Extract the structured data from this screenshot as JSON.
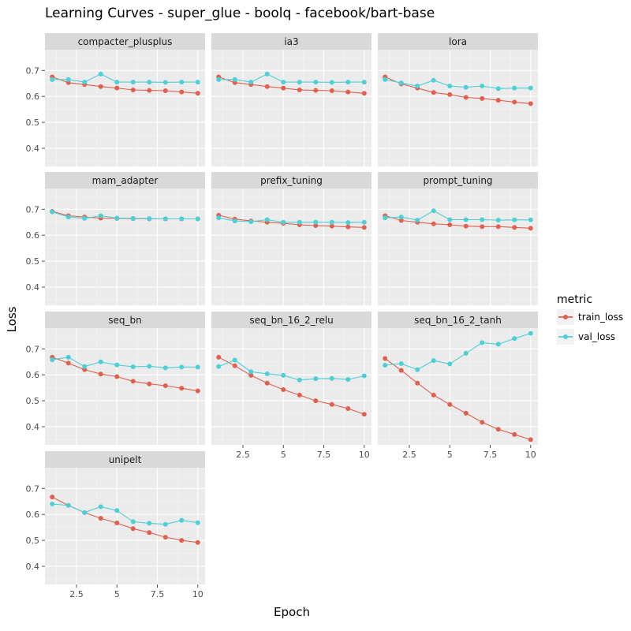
{
  "chart_data": {
    "type": "line",
    "title": "Learning Curves - super_glue - boolq - facebook/bart-base",
    "xlabel": "Epoch",
    "ylabel": "Loss",
    "xlim": [
      0.55,
      10.45
    ],
    "ylim": [
      0.33,
      0.78
    ],
    "x_ticks": [
      2.5,
      5,
      7.5,
      10
    ],
    "x_tick_labels": [
      "2.5",
      "5",
      "7.5",
      "10"
    ],
    "y_ticks": [
      0.4,
      0.5,
      0.6,
      0.7
    ],
    "y_tick_labels": [
      "0.4",
      "0.5",
      "0.6",
      "0.7"
    ],
    "grid": true,
    "legend": {
      "title": "metric",
      "position": "right"
    },
    "epochs": [
      1,
      2,
      3,
      4,
      5,
      6,
      7,
      8,
      9,
      10
    ],
    "series_styles": [
      {
        "name": "train_loss",
        "color": "#e0604f"
      },
      {
        "name": "val_loss",
        "color": "#4dcfd6"
      }
    ],
    "panels": [
      {
        "name": "compacter_plusplus",
        "train_loss": [
          0.675,
          0.653,
          0.646,
          0.638,
          0.632,
          0.625,
          0.623,
          0.622,
          0.617,
          0.612
        ],
        "val_loss": [
          0.665,
          0.665,
          0.655,
          0.686,
          0.655,
          0.655,
          0.655,
          0.654,
          0.655,
          0.655
        ]
      },
      {
        "name": "ia3",
        "train_loss": [
          0.675,
          0.653,
          0.646,
          0.638,
          0.632,
          0.625,
          0.623,
          0.622,
          0.617,
          0.612
        ],
        "val_loss": [
          0.665,
          0.665,
          0.655,
          0.686,
          0.655,
          0.655,
          0.655,
          0.654,
          0.655,
          0.655
        ]
      },
      {
        "name": "lora",
        "train_loss": [
          0.675,
          0.648,
          0.632,
          0.615,
          0.607,
          0.596,
          0.592,
          0.585,
          0.578,
          0.572
        ],
        "val_loss": [
          0.665,
          0.652,
          0.64,
          0.662,
          0.64,
          0.635,
          0.64,
          0.63,
          0.632,
          0.632
        ]
      },
      {
        "name": "mam_adapter",
        "train_loss": [
          0.692,
          0.675,
          0.67,
          0.666,
          0.665,
          0.664,
          0.663,
          0.663,
          0.663,
          0.663
        ],
        "val_loss": [
          0.69,
          0.67,
          0.665,
          0.675,
          0.666,
          0.665,
          0.664,
          0.663,
          0.663,
          0.663
        ]
      },
      {
        "name": "prefix_tuning",
        "train_loss": [
          0.677,
          0.662,
          0.655,
          0.65,
          0.646,
          0.64,
          0.637,
          0.635,
          0.632,
          0.63
        ],
        "val_loss": [
          0.667,
          0.655,
          0.652,
          0.66,
          0.65,
          0.65,
          0.65,
          0.65,
          0.649,
          0.65
        ]
      },
      {
        "name": "prompt_tuning",
        "train_loss": [
          0.675,
          0.657,
          0.65,
          0.644,
          0.64,
          0.635,
          0.633,
          0.633,
          0.63,
          0.627
        ],
        "val_loss": [
          0.667,
          0.67,
          0.658,
          0.694,
          0.66,
          0.66,
          0.66,
          0.658,
          0.659,
          0.659
        ]
      },
      {
        "name": "seq_bn",
        "train_loss": [
          0.668,
          0.645,
          0.62,
          0.603,
          0.593,
          0.575,
          0.565,
          0.558,
          0.548,
          0.538
        ],
        "val_loss": [
          0.658,
          0.668,
          0.632,
          0.65,
          0.638,
          0.631,
          0.633,
          0.627,
          0.63,
          0.63
        ]
      },
      {
        "name": "seq_bn_16_2_relu",
        "train_loss": [
          0.668,
          0.635,
          0.598,
          0.568,
          0.543,
          0.522,
          0.5,
          0.486,
          0.47,
          0.448
        ],
        "val_loss": [
          0.632,
          0.657,
          0.612,
          0.604,
          0.598,
          0.58,
          0.585,
          0.586,
          0.582,
          0.596
        ]
      },
      {
        "name": "seq_bn_16_2_tanh",
        "train_loss": [
          0.663,
          0.617,
          0.568,
          0.522,
          0.486,
          0.452,
          0.417,
          0.39,
          0.37,
          0.35
        ],
        "val_loss": [
          0.637,
          0.643,
          0.62,
          0.655,
          0.642,
          0.683,
          0.724,
          0.718,
          0.74,
          0.76
        ]
      },
      {
        "name": "unipelt",
        "train_loss": [
          0.667,
          0.635,
          0.607,
          0.585,
          0.567,
          0.545,
          0.53,
          0.512,
          0.5,
          0.492
        ],
        "val_loss": [
          0.64,
          0.635,
          0.607,
          0.63,
          0.615,
          0.572,
          0.566,
          0.562,
          0.577,
          0.568
        ]
      }
    ]
  }
}
